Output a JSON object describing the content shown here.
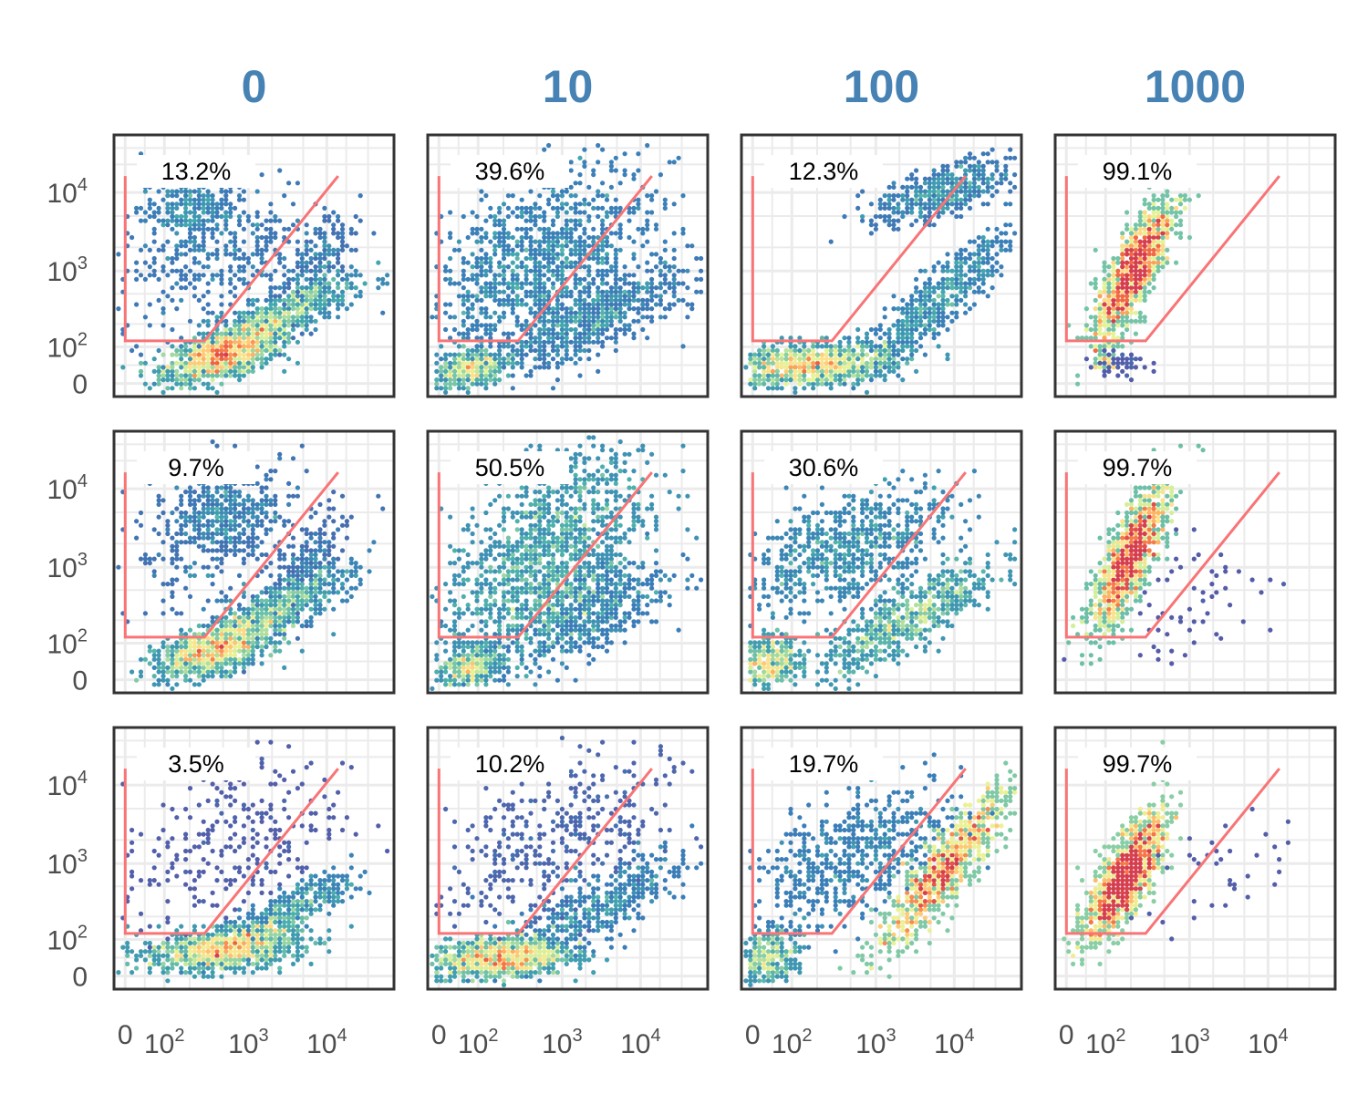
{
  "chart_data": {
    "type": "hexbin",
    "layout": "3 rows x 4 columns of density scatter panels",
    "column_titles": [
      "0",
      "10",
      "100",
      "1000"
    ],
    "x_axis": {
      "scale": "biexponential",
      "tick_labels": [
        "0",
        "10^2",
        "10^3",
        "10^4"
      ],
      "tick_values": [
        0,
        100,
        1000,
        10000
      ]
    },
    "y_axis": {
      "scale": "biexponential",
      "tick_labels": [
        "0",
        "10^2",
        "10^3",
        "10^4"
      ],
      "tick_values": [
        0,
        100,
        1000,
        10000
      ]
    },
    "grid": true,
    "gate_color": "#f87476",
    "colormap": "Spectral (purple-blue low density, yellow mid, red high)",
    "panels": [
      {
        "row": 1,
        "column": "0",
        "gate_percent": "13.2%"
      },
      {
        "row": 1,
        "column": "10",
        "gate_percent": "39.6%"
      },
      {
        "row": 1,
        "column": "100",
        "gate_percent": "12.3%"
      },
      {
        "row": 1,
        "column": "1000",
        "gate_percent": "99.1%"
      },
      {
        "row": 2,
        "column": "0",
        "gate_percent": "9.7%"
      },
      {
        "row": 2,
        "column": "10",
        "gate_percent": "50.5%"
      },
      {
        "row": 2,
        "column": "100",
        "gate_percent": "30.6%"
      },
      {
        "row": 2,
        "column": "1000",
        "gate_percent": "99.7%"
      },
      {
        "row": 3,
        "column": "0",
        "gate_percent": "3.5%"
      },
      {
        "row": 3,
        "column": "10",
        "gate_percent": "10.2%"
      },
      {
        "row": 3,
        "column": "100",
        "gate_percent": "19.7%"
      },
      {
        "row": 3,
        "column": "1000",
        "gate_percent": "99.7%"
      }
    ]
  }
}
